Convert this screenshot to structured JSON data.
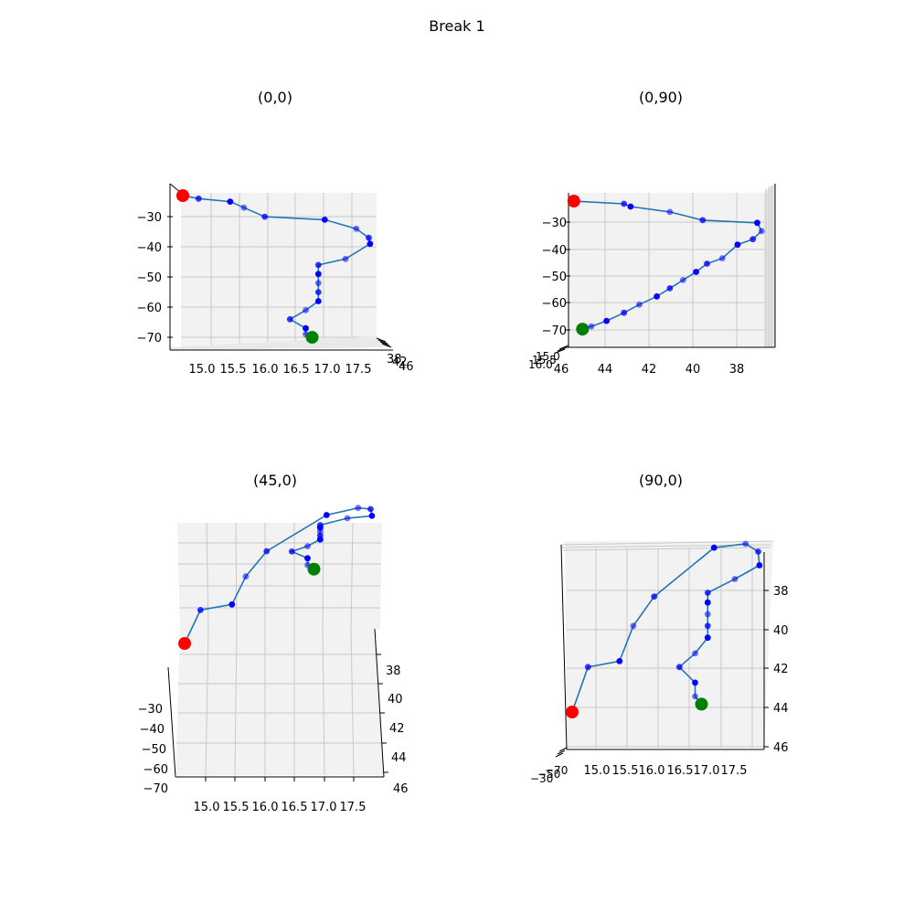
{
  "figure": {
    "title": "Break 1"
  },
  "colors": {
    "pane": "#f2f2f2",
    "grid": "#c8c8c8",
    "axis": "#000000",
    "line": "#1f77b4",
    "point": "#0000ff",
    "start": "#ff0000",
    "end": "#008000"
  },
  "chart_data": [
    {
      "type": "line3d",
      "title": "(0,0)",
      "view": {
        "elev": 0,
        "azim": 0
      },
      "x_ticks": [
        "15.0",
        "15.5",
        "16.0",
        "16.5",
        "17.0",
        "17.5"
      ],
      "y_ticks": [
        "38",
        "40",
        "42",
        "44",
        "46"
      ],
      "z_ticks": [
        "−30",
        "−40",
        "−50",
        "−60",
        "−70"
      ]
    },
    {
      "type": "line3d",
      "title": "(0,90)",
      "view": {
        "elev": 0,
        "azim": 90
      },
      "x_ticks": [
        "15.0",
        "15.5",
        "16.0",
        "16.5",
        "17.0",
        "17.5"
      ],
      "y_ticks": [
        "46",
        "44",
        "42",
        "40",
        "38"
      ],
      "z_ticks": [
        "−30",
        "−40",
        "−50",
        "−60",
        "−70"
      ]
    },
    {
      "type": "line3d",
      "title": "(45,0)",
      "view": {
        "elev": 45,
        "azim": 0
      },
      "x_ticks": [
        "15.0",
        "15.5",
        "16.0",
        "16.5",
        "17.0",
        "17.5"
      ],
      "y_ticks": [
        "38",
        "40",
        "42",
        "44",
        "46"
      ],
      "z_ticks": [
        "−30",
        "−40",
        "−50",
        "−60",
        "−70"
      ]
    },
    {
      "type": "line3d",
      "title": "(90,0)",
      "view": {
        "elev": 90,
        "azim": 0
      },
      "x_ticks": [
        "15.0",
        "15.5",
        "16.0",
        "16.5",
        "17.0",
        "17.5"
      ],
      "y_ticks": [
        "38",
        "40",
        "42",
        "44",
        "46"
      ],
      "z_ticks": [
        "−30",
        "−40",
        "−50",
        "−60",
        "−70"
      ]
    }
  ],
  "trajectory": {
    "x": [
      14.8,
      15.05,
      15.55,
      15.77,
      16.1,
      17.05,
      17.55,
      17.75,
      17.77,
      17.38,
      16.95,
      16.95,
      16.95,
      16.95,
      16.95,
      16.75,
      16.5,
      16.75,
      16.75,
      16.85
    ],
    "y": [
      45.6,
      43.3,
      43.0,
      41.2,
      39.7,
      37.2,
      37.0,
      37.4,
      38.1,
      38.8,
      39.5,
      40.0,
      40.6,
      41.2,
      41.8,
      42.6,
      43.3,
      44.1,
      44.8,
      45.2
    ],
    "z": [
      -23,
      -24,
      -25,
      -27,
      -30,
      -31,
      -34,
      -37,
      -39,
      -44,
      -46,
      -49,
      -52,
      -55,
      -58,
      -61,
      -64,
      -67,
      -69,
      -70
    ]
  }
}
